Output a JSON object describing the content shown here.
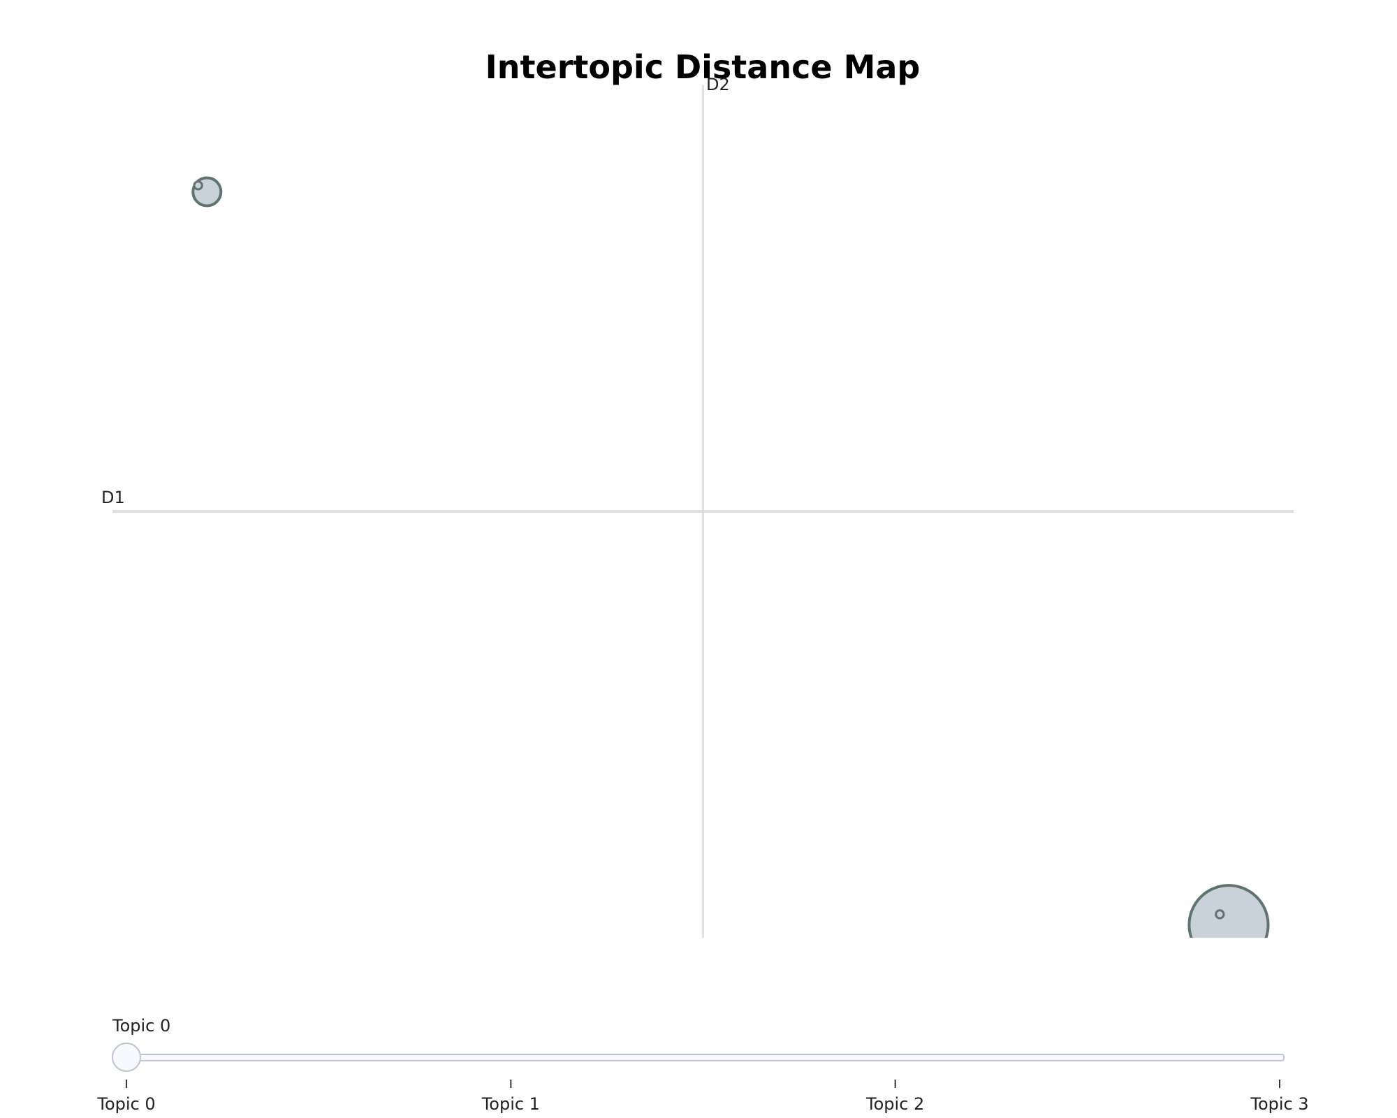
{
  "chart_data": {
    "type": "scatter",
    "title": "Intertopic Distance Map",
    "x_axis_label": "D1",
    "y_axis_label": "D2",
    "grid": false,
    "series": [
      {
        "values": [
          {
            "x": -0.84,
            "y": 0.75,
            "size": 1.0
          },
          {
            "x": -0.855,
            "y": 0.765,
            "size": 0.08
          },
          {
            "x": 0.89,
            "y": -0.97,
            "size": 8.0
          },
          {
            "x": 0.875,
            "y": -0.945,
            "size": 0.08
          }
        ]
      }
    ],
    "xlim": [
      -1,
      1
    ],
    "ylim": [
      -1,
      1
    ],
    "colors": {
      "marker_fill": "#c8d2d8",
      "marker_stroke": "#5f7373",
      "axis_line": "#e0e0e0"
    }
  },
  "slider": {
    "current_label": "Topic 0",
    "selected_index": 0,
    "steps": [
      "Topic 0",
      "Topic 1",
      "Topic 2",
      "Topic 3"
    ],
    "colors": {
      "track_fill": "#f8f9fc",
      "track_stroke": "#bcc5d4",
      "handle_fill": "#f8f9fc",
      "handle_stroke": "#bcc5d4",
      "tick": "#333333"
    }
  }
}
